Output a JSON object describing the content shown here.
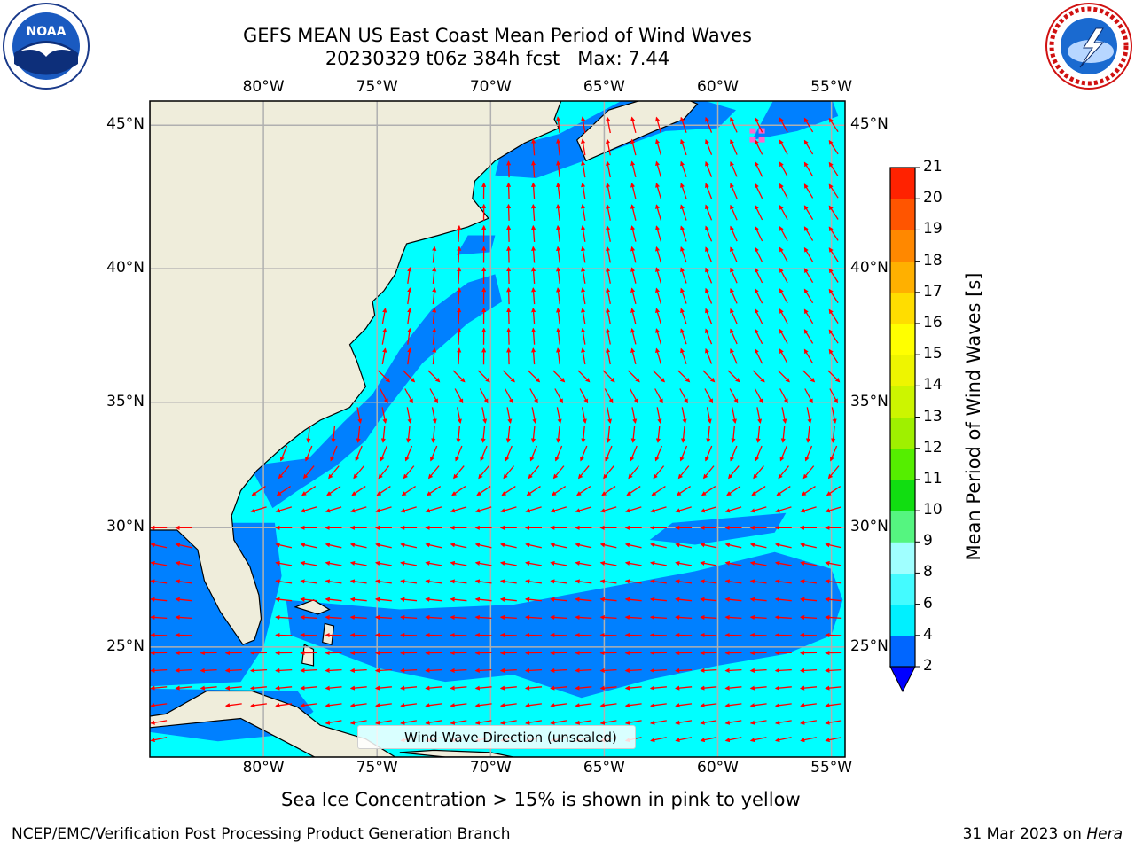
{
  "title": {
    "line1": "GEFS MEAN US East Coast Mean Period of Wind Waves",
    "line2": "20230329 t06z 384h fcst   Max: 7.44"
  },
  "logos": {
    "left": {
      "name": "NOAA",
      "text": "NOAA"
    },
    "right": {
      "name": "National Weather Service"
    }
  },
  "map": {
    "lon_labels": [
      "80°W",
      "75°W",
      "70°W",
      "65°W",
      "60°W",
      "55°W"
    ],
    "lat_labels": [
      "45°N",
      "40°N",
      "35°N",
      "30°N",
      "25°N"
    ],
    "lon_range": [
      -85,
      -54.4
    ],
    "lat_range": [
      20.2,
      45.8
    ],
    "colors": {
      "land": "#efeddb",
      "ocean_low": "#0080ff",
      "ocean_mid": "#00ffff",
      "arrow": "#ff0000",
      "grid": "#b0b0b0",
      "ice": "#ff66cc"
    },
    "legend_label": "Wind Wave Direction (unscaled)"
  },
  "colorbar": {
    "label": "Mean Period of Wind Waves [s]",
    "ticks": [
      "2",
      "4",
      "6",
      "8",
      "9",
      "10",
      "11",
      "12",
      "13",
      "14",
      "15",
      "16",
      "17",
      "18",
      "19",
      "20",
      "21"
    ],
    "colors": [
      "#0066ff",
      "#00f0ff",
      "#44fbff",
      "#a0ffff",
      "#55f580",
      "#11dd11",
      "#55ee00",
      "#9ff000",
      "#ccf500",
      "#eef500",
      "#ffff00",
      "#ffdd00",
      "#ffb000",
      "#ff8800",
      "#ff5500",
      "#ff2200",
      "#ff0000"
    ],
    "under_color": "#0000ff"
  },
  "ice_note": "Sea Ice Concentration > 15% is shown in pink to yellow",
  "footer": {
    "left": "NCEP/EMC/Verification Post Processing Product Generation Branch",
    "right_prefix": "31 Mar 2023 on ",
    "right_host": "Hera"
  }
}
